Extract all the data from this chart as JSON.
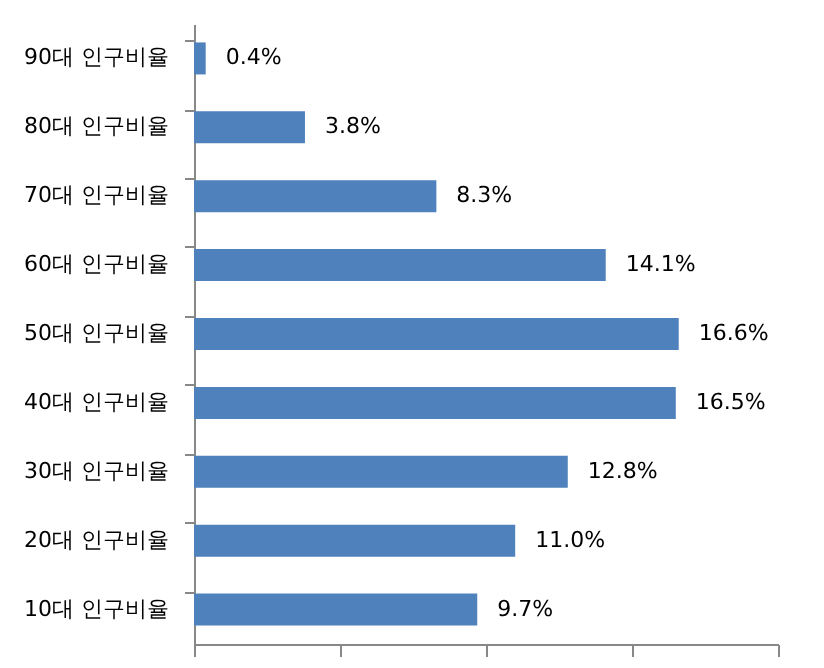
{
  "chart_data": {
    "type": "bar",
    "orientation": "horizontal",
    "categories": [
      "90대 인구비율",
      "80대 인구비율",
      "70대 인구비율",
      "60대 인구비율",
      "50대 인구비율",
      "40대 인구비율",
      "30대 인구비율",
      "20대 인구비율",
      "10대 인구비율"
    ],
    "values": [
      0.4,
      3.8,
      8.3,
      14.1,
      16.6,
      16.5,
      12.8,
      11.0,
      9.7
    ],
    "value_labels": [
      "0.4%",
      "3.8%",
      "8.3%",
      "14.1%",
      "16.6%",
      "16.5%",
      "12.8%",
      "11.0%",
      "9.7%"
    ],
    "color": "#4f81bd",
    "xlim": [
      0,
      20
    ],
    "xticks": [
      {
        "value": 0,
        "label": null
      },
      {
        "value": 5,
        "label": null
      },
      {
        "value": 10,
        "label": null
      },
      {
        "value": 15,
        "label": null
      },
      {
        "value": 20,
        "label": null
      }
    ],
    "tick_labels": "y",
    "grid": false
  }
}
